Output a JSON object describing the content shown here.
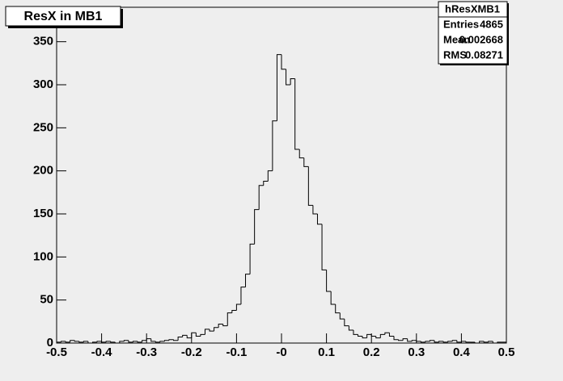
{
  "chart_data": {
    "type": "histogram",
    "title": "ResX in MB1",
    "bins": [
      -0.5,
      -0.49,
      -0.48,
      -0.47,
      -0.46,
      -0.45,
      -0.44,
      -0.43,
      -0.42,
      -0.41,
      -0.4,
      -0.39,
      -0.38,
      -0.37,
      -0.36,
      -0.35,
      -0.34,
      -0.33,
      -0.32,
      -0.31,
      -0.3,
      -0.29,
      -0.28,
      -0.27,
      -0.26,
      -0.25,
      -0.24,
      -0.23,
      -0.22,
      -0.21,
      -0.2,
      -0.19,
      -0.18,
      -0.17,
      -0.16,
      -0.15,
      -0.14,
      -0.13,
      -0.12,
      -0.11,
      -0.1,
      -0.09,
      -0.08,
      -0.07,
      -0.06,
      -0.05,
      -0.04,
      -0.03,
      -0.02,
      -0.01,
      0,
      0.01,
      0.02,
      0.03,
      0.04,
      0.05,
      0.06,
      0.07,
      0.08,
      0.09,
      0.1,
      0.11,
      0.12,
      0.13,
      0.14,
      0.15,
      0.16,
      0.17,
      0.18,
      0.19,
      0.2,
      0.21,
      0.22,
      0.23,
      0.24,
      0.25,
      0.26,
      0.27,
      0.28,
      0.29,
      0.3,
      0.31,
      0.32,
      0.33,
      0.34,
      0.35,
      0.36,
      0.37,
      0.38,
      0.39,
      0.4,
      0.41,
      0.42,
      0.43,
      0.44,
      0.45,
      0.46,
      0.47,
      0.48,
      0.49,
      0.5
    ],
    "values": [
      1,
      2,
      1,
      3,
      2,
      1,
      2,
      0,
      1,
      2,
      1,
      2,
      1,
      0,
      2,
      3,
      1,
      2,
      1,
      3,
      5,
      2,
      1,
      2,
      3,
      4,
      3,
      7,
      9,
      6,
      12,
      8,
      10,
      16,
      14,
      18,
      22,
      20,
      35,
      38,
      45,
      65,
      80,
      115,
      155,
      183,
      188,
      200,
      258,
      335,
      318,
      300,
      307,
      225,
      215,
      205,
      160,
      150,
      138,
      85,
      60,
      45,
      35,
      28,
      20,
      15,
      10,
      8,
      6,
      10,
      8,
      6,
      10,
      12,
      8,
      4,
      3,
      5,
      2,
      3,
      2,
      1,
      2,
      3,
      1,
      2,
      1,
      2,
      3,
      1,
      2,
      1,
      1,
      0,
      2,
      1,
      2,
      0,
      1,
      1
    ],
    "color": "#000000",
    "xlim": [
      -0.5,
      0.5
    ],
    "xticks": [
      -0.5,
      -0.4,
      -0.3,
      -0.2,
      -0.1,
      {
        "value": 0,
        "label": "-0"
      },
      0.1,
      0.2,
      0.3,
      0.4,
      0.5
    ],
    "ylim": [
      0,
      390
    ],
    "yticks": [
      0,
      50,
      100,
      150,
      200,
      250,
      300,
      350
    ],
    "stats": {
      "name": "hResXMB1",
      "rows": [
        [
          "Entries",
          "4865"
        ],
        [
          "Mean",
          "0.002668"
        ],
        [
          "RMS",
          "0.08271"
        ]
      ]
    }
  }
}
